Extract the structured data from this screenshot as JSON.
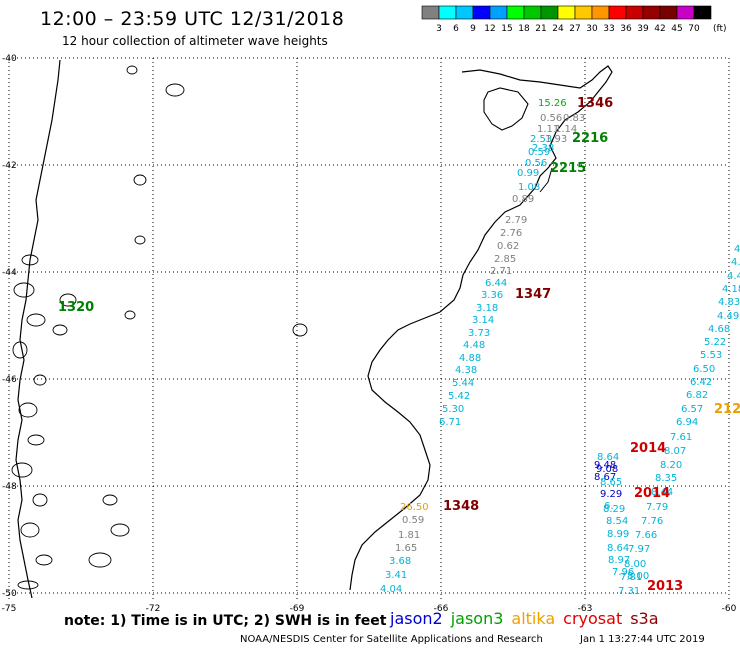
{
  "title": "12:00 – 23:59 UTC 12/31/2018",
  "subtitle": "12 hour collection of altimeter wave heights",
  "colorbar": {
    "unit": "(ft)",
    "ticks": [
      "3",
      "6",
      "9",
      "12",
      "15",
      "18",
      "21",
      "24",
      "27",
      "30",
      "33",
      "36",
      "39",
      "42",
      "45",
      "70"
    ],
    "colors": [
      "#808080",
      "#00ffff",
      "#00c8ff",
      "#0000ff",
      "#00a0ff",
      "#00ff00",
      "#00c800",
      "#009600",
      "#ffff00",
      "#ffc800",
      "#ff9600",
      "#ff0000",
      "#c80000",
      "#960000",
      "#780000",
      "#c800c8",
      "#000000"
    ]
  },
  "axes": {
    "lon_labels": [
      "-75",
      "-72",
      "-69",
      "-66",
      "-63",
      "-60"
    ],
    "lat_labels": [
      "-40",
      "-42",
      "-44",
      "-46",
      "-48",
      "-50"
    ],
    "grid": "dotted"
  },
  "time_labels": [
    {
      "text": "1346",
      "color": "#800000"
    },
    {
      "text": "2216",
      "color": "#008000"
    },
    {
      "text": "2215",
      "color": "#008000"
    },
    {
      "text": "1347",
      "color": "#800000"
    },
    {
      "text": "1348",
      "color": "#800000"
    },
    {
      "text": "2014",
      "color": "#d00000"
    },
    {
      "text": "2014",
      "color": "#d00000"
    },
    {
      "text": "2013",
      "color": "#d00000"
    },
    {
      "text": "212",
      "color": "#e8a000"
    },
    {
      "text": "1320",
      "color": "#008000"
    }
  ],
  "wave_values": [
    {
      "text": "15.26",
      "color": "#00b000"
    },
    {
      "text": "0.56",
      "color": "#808080"
    },
    {
      "text": "0.83",
      "color": "#808080"
    },
    {
      "text": "1.11",
      "color": "#808080"
    },
    {
      "text": "1.14",
      "color": "#808080"
    },
    {
      "text": "2.53",
      "color": "#00b4d8"
    },
    {
      "text": "1.93",
      "color": "#808080"
    },
    {
      "text": "2.38",
      "color": "#00b4d8"
    },
    {
      "text": "0.59",
      "color": "#00b4d8"
    },
    {
      "text": "0.56",
      "color": "#00b4d8"
    },
    {
      "text": "0.99",
      "color": "#00b4d8"
    },
    {
      "text": "1.08",
      "color": "#00b4d8"
    },
    {
      "text": "0.89",
      "color": "#808080"
    },
    {
      "text": "2.79",
      "color": "#808080"
    },
    {
      "text": "2.76",
      "color": "#808080"
    },
    {
      "text": "0.62",
      "color": "#808080"
    },
    {
      "text": "2.85",
      "color": "#808080"
    },
    {
      "text": "2.71",
      "color": "#808080"
    },
    {
      "text": "6.44",
      "color": "#00b4d8"
    },
    {
      "text": "3.36",
      "color": "#00b4d8"
    },
    {
      "text": "3.18",
      "color": "#00b4d8"
    },
    {
      "text": "3.14",
      "color": "#00b4d8"
    },
    {
      "text": "3.73",
      "color": "#00b4d8"
    },
    {
      "text": "4.48",
      "color": "#00b4d8"
    },
    {
      "text": "4.88",
      "color": "#00b4d8"
    },
    {
      "text": "4.38",
      "color": "#00b4d8"
    },
    {
      "text": "5.44",
      "color": "#00b4d8"
    },
    {
      "text": "5.42",
      "color": "#00b4d8"
    },
    {
      "text": "5.30",
      "color": "#00b4d8"
    },
    {
      "text": "6.71",
      "color": "#00b4d8"
    },
    {
      "text": "26.50",
      "color": "#e8a000"
    },
    {
      "text": "0.59",
      "color": "#808080"
    },
    {
      "text": "1.81",
      "color": "#808080"
    },
    {
      "text": "1.65",
      "color": "#808080"
    },
    {
      "text": "3.68",
      "color": "#00b4d8"
    },
    {
      "text": "3.41",
      "color": "#00b4d8"
    },
    {
      "text": "4.04",
      "color": "#00b4d8"
    },
    {
      "text": "4.",
      "color": "#00b4d8"
    },
    {
      "text": "4.",
      "color": "#00b4d8"
    },
    {
      "text": "4.4",
      "color": "#00b4d8"
    },
    {
      "text": "4.18",
      "color": "#00b4d8"
    },
    {
      "text": "4.83",
      "color": "#00b4d8"
    },
    {
      "text": "4.49",
      "color": "#00b4d8"
    },
    {
      "text": "4.68",
      "color": "#00b4d8"
    },
    {
      "text": "5.22",
      "color": "#00b4d8"
    },
    {
      "text": "5.53",
      "color": "#00b4d8"
    },
    {
      "text": "6.50",
      "color": "#00b4d8"
    },
    {
      "text": "6.42",
      "color": "#00b4d8"
    },
    {
      "text": "6.82",
      "color": "#00b4d8"
    },
    {
      "text": "6.57",
      "color": "#00b4d8"
    },
    {
      "text": "6.94",
      "color": "#00b4d8"
    },
    {
      "text": "7.61",
      "color": "#00b4d8"
    },
    {
      "text": "8.07",
      "color": "#00b4d8"
    },
    {
      "text": "8.20",
      "color": "#00b4d8"
    },
    {
      "text": "8.35",
      "color": "#00b4d8"
    },
    {
      "text": "8.44",
      "color": "#00b4d8"
    },
    {
      "text": "7.79",
      "color": "#00b4d8"
    },
    {
      "text": "7.76",
      "color": "#00b4d8"
    },
    {
      "text": "7.66",
      "color": "#00b4d8"
    },
    {
      "text": "7.97",
      "color": "#00b4d8"
    },
    {
      "text": "8.00",
      "color": "#00b4d8"
    },
    {
      "text": "7.81",
      "color": "#00b4d8"
    },
    {
      "text": "7.31",
      "color": "#00b4d8"
    },
    {
      "text": "9.48",
      "color": "#0000c8"
    },
    {
      "text": "8.67",
      "color": "#0000c8"
    },
    {
      "text": "8.64",
      "color": "#00b4d8"
    },
    {
      "text": "9.08",
      "color": "#0000c8"
    },
    {
      "text": "8.65",
      "color": "#00b4d8"
    },
    {
      "text": "9.29",
      "color": "#0000c8"
    },
    {
      "text": "8.29",
      "color": "#00b4d8"
    },
    {
      "text": "8.54",
      "color": "#00b4d8"
    },
    {
      "text": "8.99",
      "color": "#00b4d8"
    },
    {
      "text": "8.64",
      "color": "#00b4d8"
    },
    {
      "text": "8.97",
      "color": "#00b4d8"
    },
    {
      "text": "7.96",
      "color": "#00b4d8"
    },
    {
      "text": "8.00",
      "color": "#00b4d8"
    },
    {
      "text": "6.",
      "color": "#00b4d8"
    },
    {
      "text": "9.54",
      "color": "#0000c8"
    }
  ],
  "note": "note:  1) Time is in UTC;  2) SWH is in feet",
  "satellites": [
    {
      "name": "jason2",
      "color": "#0000d0"
    },
    {
      "name": "jason3",
      "color": "#00a000"
    },
    {
      "name": "altika",
      "color": "#f0a000"
    },
    {
      "name": "cryosat",
      "color": "#e00000"
    },
    {
      "name": "s3a",
      "color": "#900000"
    }
  ],
  "footer": "NOAA/NESDIS Center for Satellite Applications and Research",
  "footer_time": "Jan  1 13:27:44 UTC 2019"
}
